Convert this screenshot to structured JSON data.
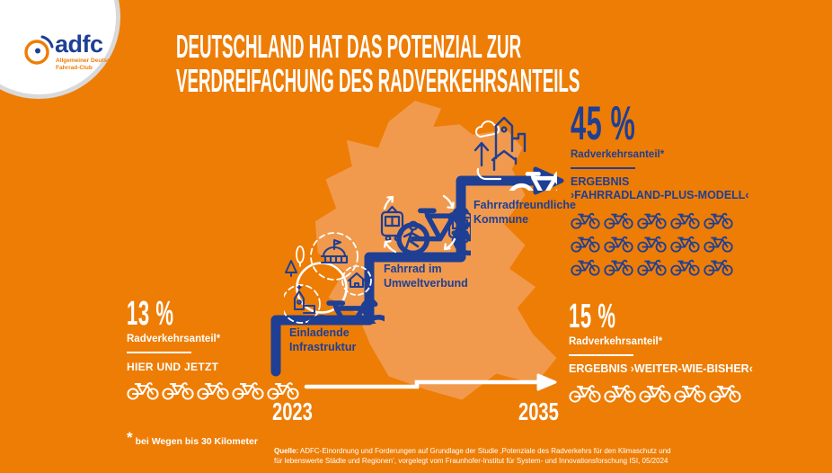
{
  "colors": {
    "background": "#ee7d05",
    "map": "#f19a4e",
    "blue": "#1e3f94",
    "white": "#ffffff",
    "logo_gray": "#d9d9d9",
    "logo_orange": "#ee7d05"
  },
  "logo": {
    "brand": "adfc",
    "subtitle_line1": "Allgemeiner Deutscher",
    "subtitle_line2": "Fahrrad-Club"
  },
  "title": {
    "line1": "DEUTSCHLAND HAT DAS POTENZIAL ZUR",
    "line2": "VERDREIFACHUNG DES RADVERKEHRSANTEILS"
  },
  "steps": [
    {
      "line1": "Einladende",
      "line2": "Infrastruktur",
      "icon": "inviting-infrastructure-icon"
    },
    {
      "line1": "Fahrrad im",
      "line2": "Umweltverbund",
      "icon": "eco-mobility-network-icon"
    },
    {
      "line1": "Fahrradfreundliche",
      "line2": "Kommune",
      "icon": "bike-friendly-town-icon"
    }
  ],
  "stats": {
    "current": {
      "value": "13 %",
      "label": "Radverkehrsanteil*",
      "sublabel": "HIER UND JETZT",
      "bike_icons": 5
    },
    "plus_model": {
      "value": "45 %",
      "label": "Radverkehrsanteil*",
      "result_line1": "ERGEBNIS",
      "result_line2": "›FAHRRADLAND-PLUS-MODELL‹",
      "bike_icons": 15
    },
    "business_as_usual": {
      "value": "15 %",
      "label": "Radverkehrsanteil*",
      "result": "ERGEBNIS ›WEITER-WIE-BISHER‹",
      "bike_icons": 5
    }
  },
  "timeline": {
    "start_year": "2023",
    "end_year": "2035"
  },
  "footnote": {
    "marker": "*",
    "text": "bei Wegen bis 30 Kilometer"
  },
  "source": {
    "prefix": "Quelle:",
    "text": " ADFC-Einordnung und Forderungen auf Grundlage der Studie ‚Potenziale des Radverkehrs für den Klimaschutz und für lebenswerte Städte und Regionen’, vorgelegt vom Fraunhofer-Institut für System- und Innovationsforschung ISI, 05/2024"
  },
  "chart_data": {
    "type": "bar",
    "subtype": "pictogram",
    "title": "Deutschland hat das Potenzial zur Verdreifachung des Radverkehrsanteils",
    "unit": "% Radverkehrsanteil (bei Wegen bis 30 Kilometer)",
    "categories": [
      "HIER UND JETZT (2023)",
      "ERGEBNIS ›WEITER-WIE-BISHER‹ (2035)",
      "ERGEBNIS ›FAHRRADLAND-PLUS-MODELL‹ (2035)"
    ],
    "values": [
      13,
      15,
      45
    ],
    "pictogram_icon": "bicycle",
    "pictogram_counts": [
      5,
      5,
      15
    ],
    "steps_to_target": [
      "Einladende Infrastruktur",
      "Fahrrad im Umweltverbund",
      "Fahrradfreundliche Kommune"
    ],
    "x_timeline": [
      "2023",
      "2035"
    ],
    "legend_position": "none",
    "grid": false
  }
}
